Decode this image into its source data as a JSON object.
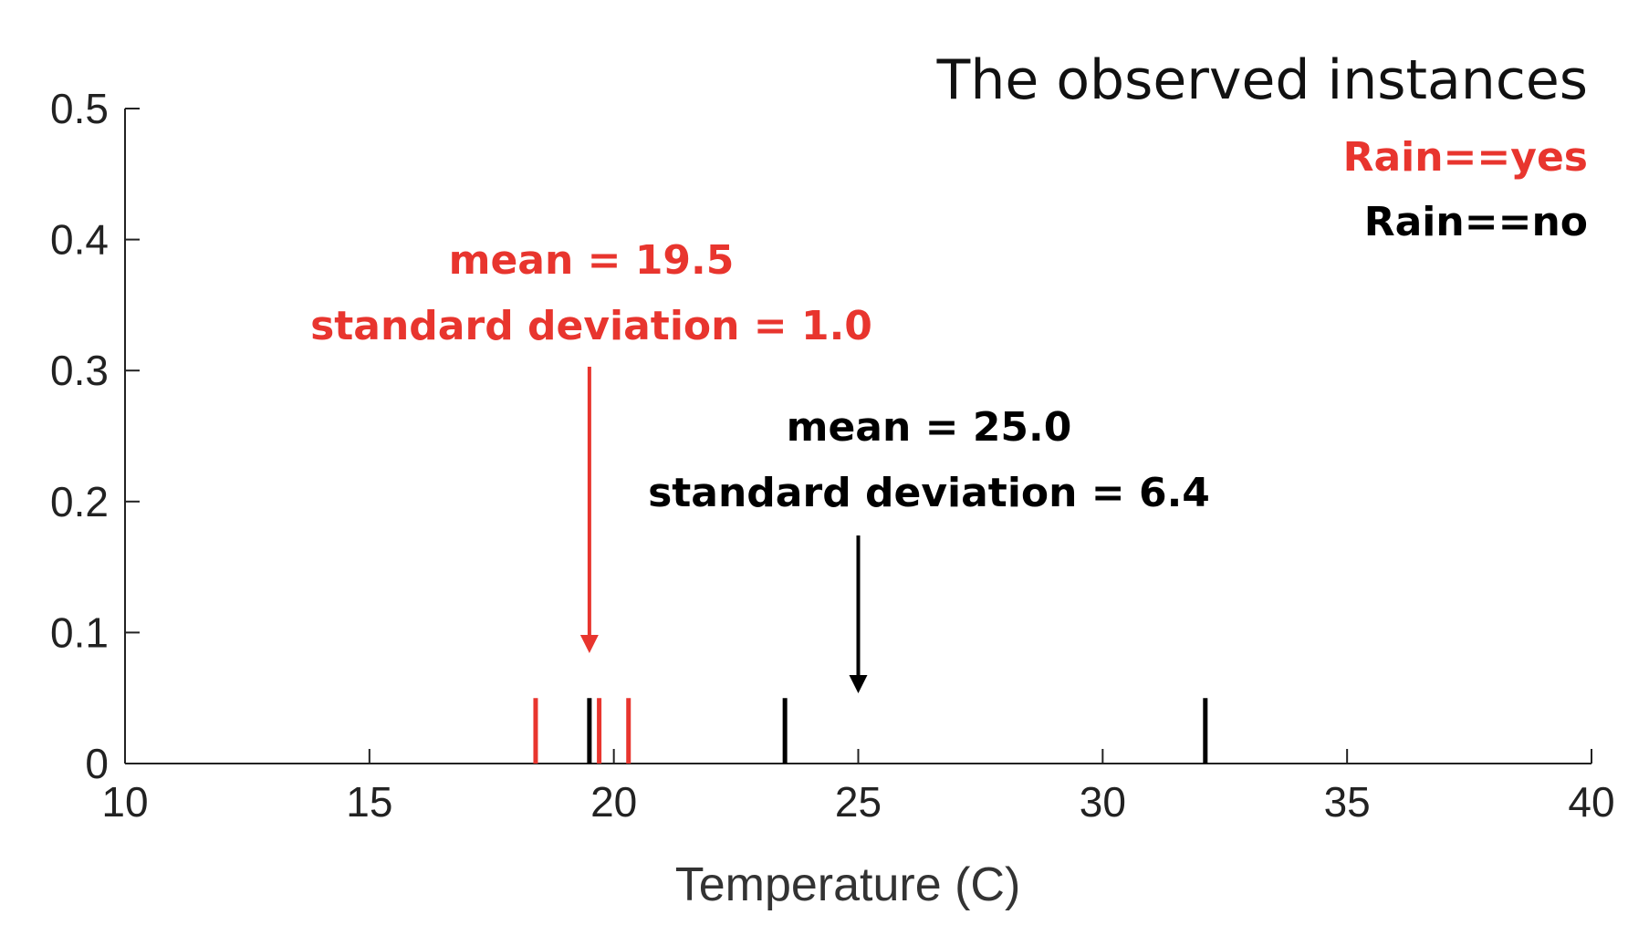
{
  "chart_data": {
    "type": "scatter",
    "title": "The observed instances",
    "xlabel": "Temperature (C)",
    "ylabel": "",
    "xlim": [
      10,
      40
    ],
    "ylim": [
      0,
      0.5
    ],
    "x_ticks": [
      "10",
      "15",
      "20",
      "25",
      "30",
      "35",
      "40"
    ],
    "y_ticks": [
      "0",
      "0.1",
      "0.2",
      "0.3",
      "0.4",
      "0.5"
    ],
    "grid": false,
    "legend_position": "top-right",
    "series": [
      {
        "name": "Rain==yes",
        "color": "#e8352e",
        "marker": "vertical-line",
        "x": [
          18.4,
          19.7,
          20.3
        ],
        "y": [
          0,
          0,
          0
        ],
        "marker_height": 0.05,
        "mean_label": "mean = 19.5",
        "sd_label": "standard deviation = 1.0",
        "mean": 19.5
      },
      {
        "name": "Rain==no",
        "color": "#000000",
        "marker": "vertical-line",
        "x": [
          19.5,
          23.5,
          32.1
        ],
        "y": [
          0,
          0,
          0
        ],
        "marker_height": 0.05,
        "mean_label": "mean = 25.0",
        "sd_label": "standard deviation = 6.4",
        "mean": 25.0
      }
    ]
  }
}
